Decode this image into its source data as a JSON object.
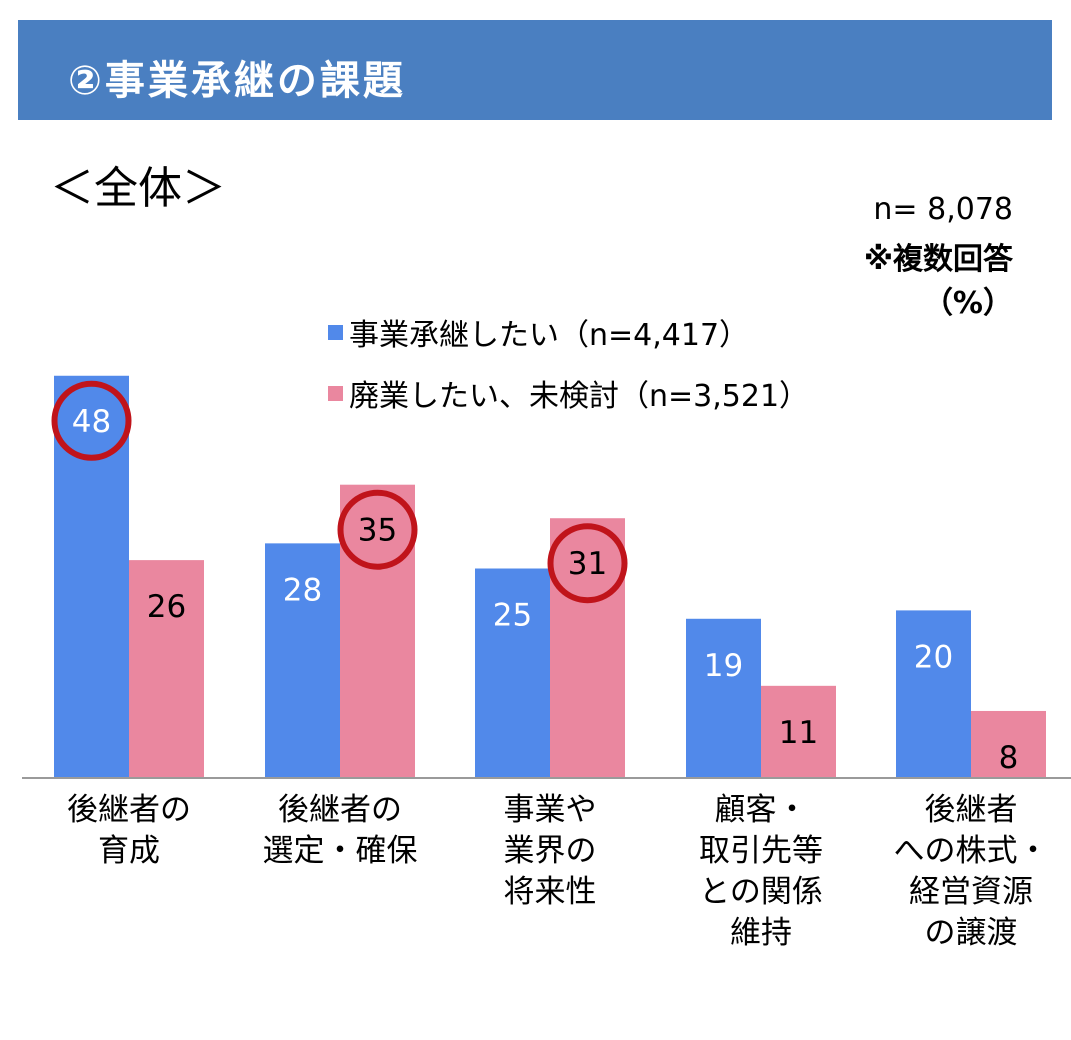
{
  "header": {
    "title": "②事業承継の課題",
    "subtitle": "＜全体＞"
  },
  "notes": {
    "sample": "n= 8,078",
    "multiple": "※複数回答",
    "unit": "（%）"
  },
  "colors": {
    "banner": "#4a7fc1",
    "series1": "#5189ea",
    "series2": "#ea879f",
    "highlight_ring": "#c0141b"
  },
  "chart_data": {
    "type": "bar",
    "categories": [
      "後継者の\n育成",
      "後継者の\n選定・確保",
      "事業や\n業界の\n将来性",
      "顧客・\n取引先等\nとの関係\n維持",
      "後継者\nへの株式・\n経営資源\nの譲渡"
    ],
    "series": [
      {
        "name": "事業承継したい（n=4,417）",
        "values": [
          48,
          28,
          25,
          19,
          20
        ]
      },
      {
        "name": "廃業したい、未検討（n=3,521）",
        "values": [
          26,
          35,
          31,
          11,
          8
        ]
      }
    ],
    "highlighted": [
      {
        "series": 0,
        "category": 0
      },
      {
        "series": 1,
        "category": 1
      },
      {
        "series": 1,
        "category": 2
      }
    ],
    "ylim": [
      0,
      50
    ],
    "grid": false,
    "legend_position": "top-center"
  }
}
